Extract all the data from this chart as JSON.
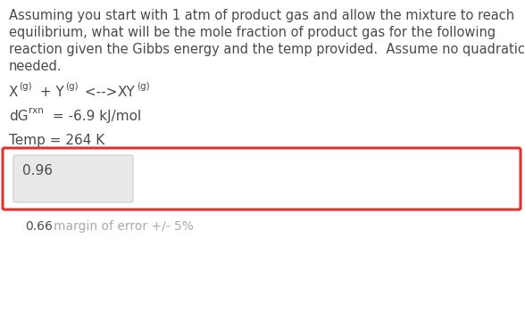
{
  "para_lines": [
    "Assuming you start with 1 atm of product gas and allow the mixture to reach",
    "equilibrium, what will be the mole fraction of product gas for the following",
    "reaction given the Gibbs energy and the temp provided.  Assume no quadratic",
    "needed."
  ],
  "answer_value": "0.96",
  "bottom_value": "0.66",
  "bottom_margin": "margin of error +/- 5%",
  "text_color": "#4a4a4a",
  "light_gray_text": "#aaaaaa",
  "red_border_color": "#e03030",
  "input_box_bg": "#e8e8e8",
  "input_box_border": "#cccccc",
  "white_bg": "#ffffff",
  "font_size_para": 10.5,
  "font_size_formula": 11.0,
  "font_size_sub": 7.5,
  "font_size_answer": 11.0,
  "font_size_bottom": 10.0
}
